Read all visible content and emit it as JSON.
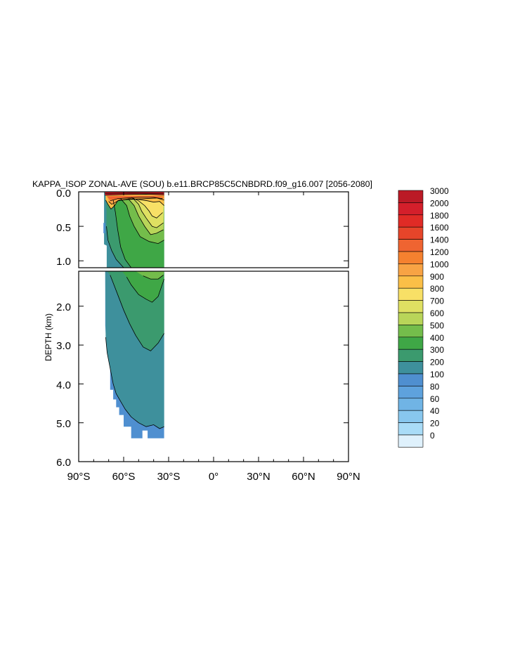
{
  "chart_data": {
    "type": "heatmap",
    "title": "KAPPA_ISOP ZONAL-AVE (SOU) b.e11.BRCP85C5CNBDRD.f09_g16.007 [2056-2080]",
    "xlabel": "",
    "ylabel": "DEPTH (km)",
    "x_ticks": [
      "90°S",
      "60°S",
      "30°S",
      "0°",
      "30°N",
      "60°N",
      "90°N"
    ],
    "x_range": [
      -90,
      90
    ],
    "upper_panel": {
      "y_range": [
        0.0,
        1.1
      ],
      "y_ticks": [
        "0.0",
        "0.5",
        "1.0"
      ]
    },
    "lower_panel": {
      "y_range": [
        1.1,
        6.0
      ],
      "y_ticks": [
        "2.0",
        "3.0",
        "4.0",
        "5.0",
        "6.0"
      ]
    },
    "colorbar": {
      "levels": [
        "3000",
        "2000",
        "1800",
        "1600",
        "1400",
        "1200",
        "1000",
        "900",
        "800",
        "700",
        "600",
        "500",
        "400",
        "300",
        "200",
        "100",
        "80",
        "60",
        "40",
        "20",
        "0"
      ],
      "colors": [
        "#bb1a26",
        "#d41f2b",
        "#e02b26",
        "#e6452a",
        "#ef6431",
        "#f5812f",
        "#f8a344",
        "#fbbf47",
        "#f8e066",
        "#dfe062",
        "#b9d559",
        "#74bd4b",
        "#3fa746",
        "#3b9a6e",
        "#3e909c",
        "#4f8fd0",
        "#5ea2dd",
        "#70b4e5",
        "#88c7ee",
        "#a9dcf7",
        "#dff1fc"
      ]
    },
    "regions": [
      {
        "name": "0-20",
        "color": "#dff1fc"
      },
      {
        "name": "100-200",
        "color": "#4f8fd0"
      },
      {
        "name": "200-300",
        "color": "#3e909c"
      },
      {
        "name": "300-400",
        "color": "#3b9a6e"
      },
      {
        "name": "400-500",
        "color": "#3fa746"
      },
      {
        "name": "500-600",
        "color": "#74bd4b"
      },
      {
        "name": "600-700",
        "color": "#b9d559"
      },
      {
        "name": "700-800",
        "color": "#dfe062"
      },
      {
        "name": "800-900",
        "color": "#f8e066"
      },
      {
        "name": "900-1000",
        "color": "#fbbf47"
      },
      {
        "name": "1000-1200",
        "color": "#f8a344"
      },
      {
        "name": "1200-1400",
        "color": "#f5812f"
      },
      {
        "name": "1400-1600",
        "color": "#ef6431"
      },
      {
        "name": ">2000",
        "color": "#d41f2b"
      }
    ],
    "grid": false,
    "legend_position": "right"
  }
}
